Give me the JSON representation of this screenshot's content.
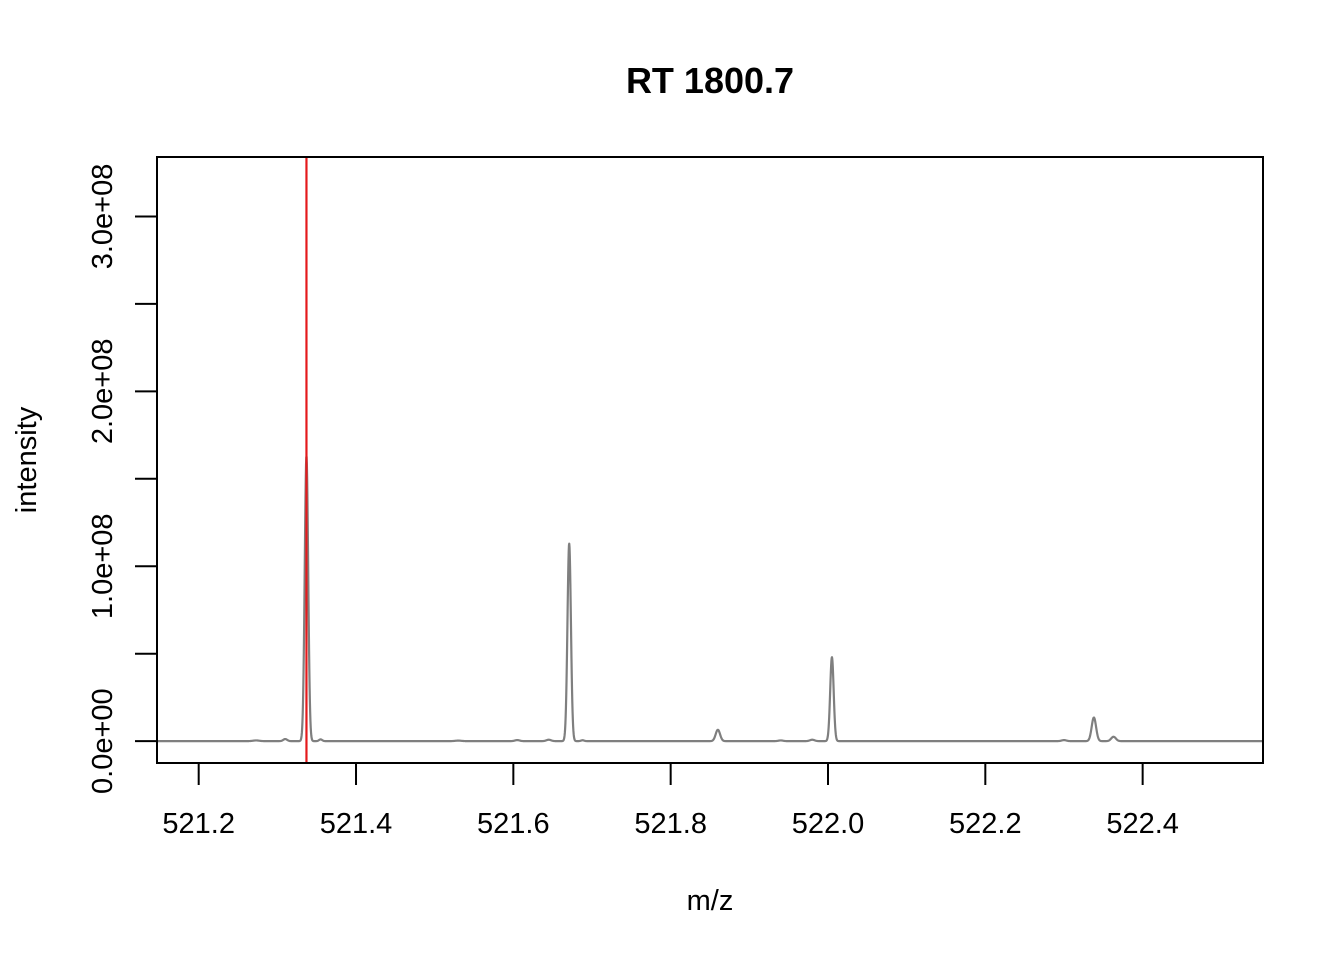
{
  "chart_data": {
    "type": "line",
    "title": "RT 1800.7",
    "xlabel": "m/z",
    "ylabel": "intensity",
    "xlim": [
      521.147,
      522.553
    ],
    "ylim": [
      -12500000,
      334000000
    ],
    "x_ticks": [
      521.2,
      521.4,
      521.6,
      521.8,
      522.0,
      522.2,
      522.4
    ],
    "x_tick_labels": [
      "521.2",
      "521.4",
      "521.6",
      "521.8",
      "522.0",
      "522.2",
      "522.4"
    ],
    "y_ticks": [
      0,
      50000000,
      100000000,
      150000000,
      200000000,
      250000000,
      300000000
    ],
    "y_tick_labels": [
      "0.0e+00",
      "",
      "1.0e+08",
      "",
      "2.0e+08",
      "",
      "3.0e+08"
    ],
    "grid": false,
    "series": [
      {
        "color": "#7f7f7f",
        "peaks": [
          {
            "mz": 521.273,
            "intensity": 400000,
            "width": 0.004
          },
          {
            "mz": 521.31,
            "intensity": 1200000,
            "width": 0.0025
          },
          {
            "mz": 521.337,
            "intensity": 163000000,
            "width": 0.0022
          },
          {
            "mz": 521.355,
            "intensity": 1000000,
            "width": 0.002
          },
          {
            "mz": 521.53,
            "intensity": 300000,
            "width": 0.004
          },
          {
            "mz": 521.605,
            "intensity": 600000,
            "width": 0.003
          },
          {
            "mz": 521.645,
            "intensity": 800000,
            "width": 0.003
          },
          {
            "mz": 521.671,
            "intensity": 113000000,
            "width": 0.0022
          },
          {
            "mz": 521.688,
            "intensity": 500000,
            "width": 0.002
          },
          {
            "mz": 521.86,
            "intensity": 6500000,
            "width": 0.0028
          },
          {
            "mz": 521.94,
            "intensity": 400000,
            "width": 0.003
          },
          {
            "mz": 521.98,
            "intensity": 800000,
            "width": 0.003
          },
          {
            "mz": 522.005,
            "intensity": 48000000,
            "width": 0.0022
          },
          {
            "mz": 522.3,
            "intensity": 600000,
            "width": 0.003
          },
          {
            "mz": 522.338,
            "intensity": 13500000,
            "width": 0.0028
          },
          {
            "mz": 522.363,
            "intensity": 2500000,
            "width": 0.003
          }
        ]
      }
    ],
    "markers": [
      {
        "type": "vline",
        "x": 521.337,
        "color": "#e41a1c"
      }
    ]
  }
}
